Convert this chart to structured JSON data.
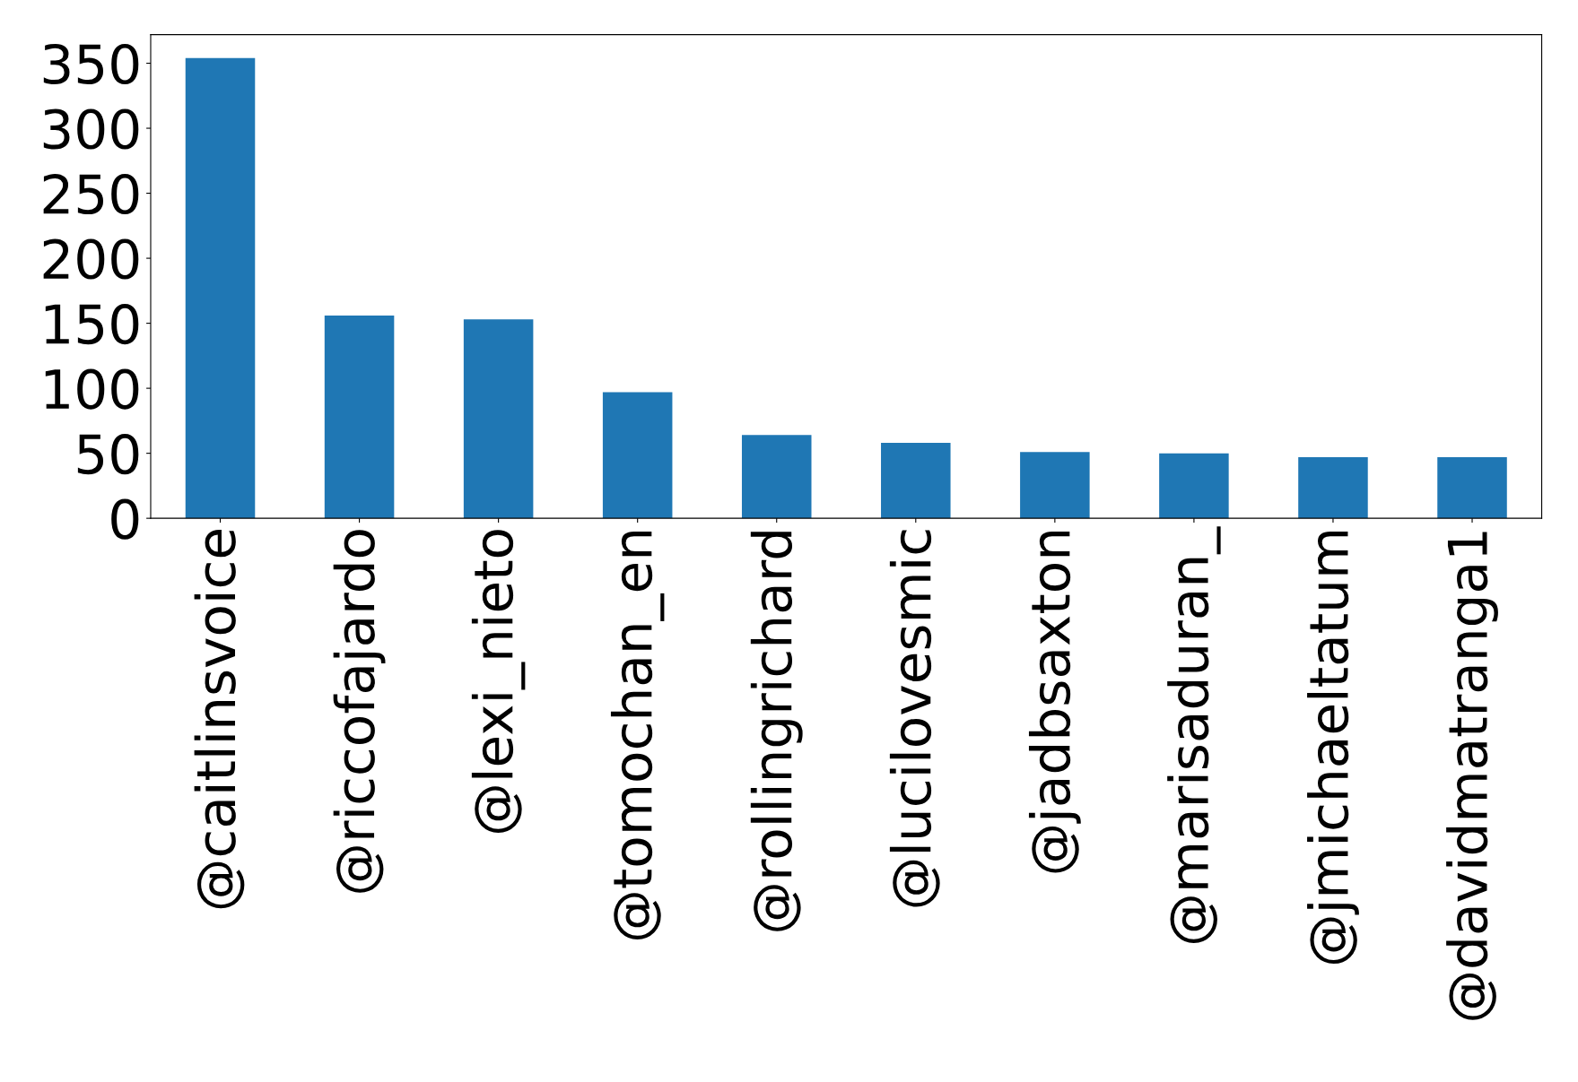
{
  "chart_data": {
    "type": "bar",
    "categories": [
      "@caitlinsvoice",
      "@riccofajardo",
      "@lexi_nieto",
      "@tomochan_en",
      "@rollingrichard",
      "@lucilovesmic",
      "@jadbsaxton",
      "@marisaduran_",
      "@jmichaeltatum",
      "@davidmatranga1"
    ],
    "values": [
      354,
      156,
      153,
      97,
      64,
      58,
      51,
      50,
      47,
      47
    ],
    "color": "#1f77b4",
    "ylim": [
      0,
      372
    ],
    "yticks": [
      0,
      50,
      100,
      150,
      200,
      250,
      300,
      350
    ],
    "grid": false
  }
}
